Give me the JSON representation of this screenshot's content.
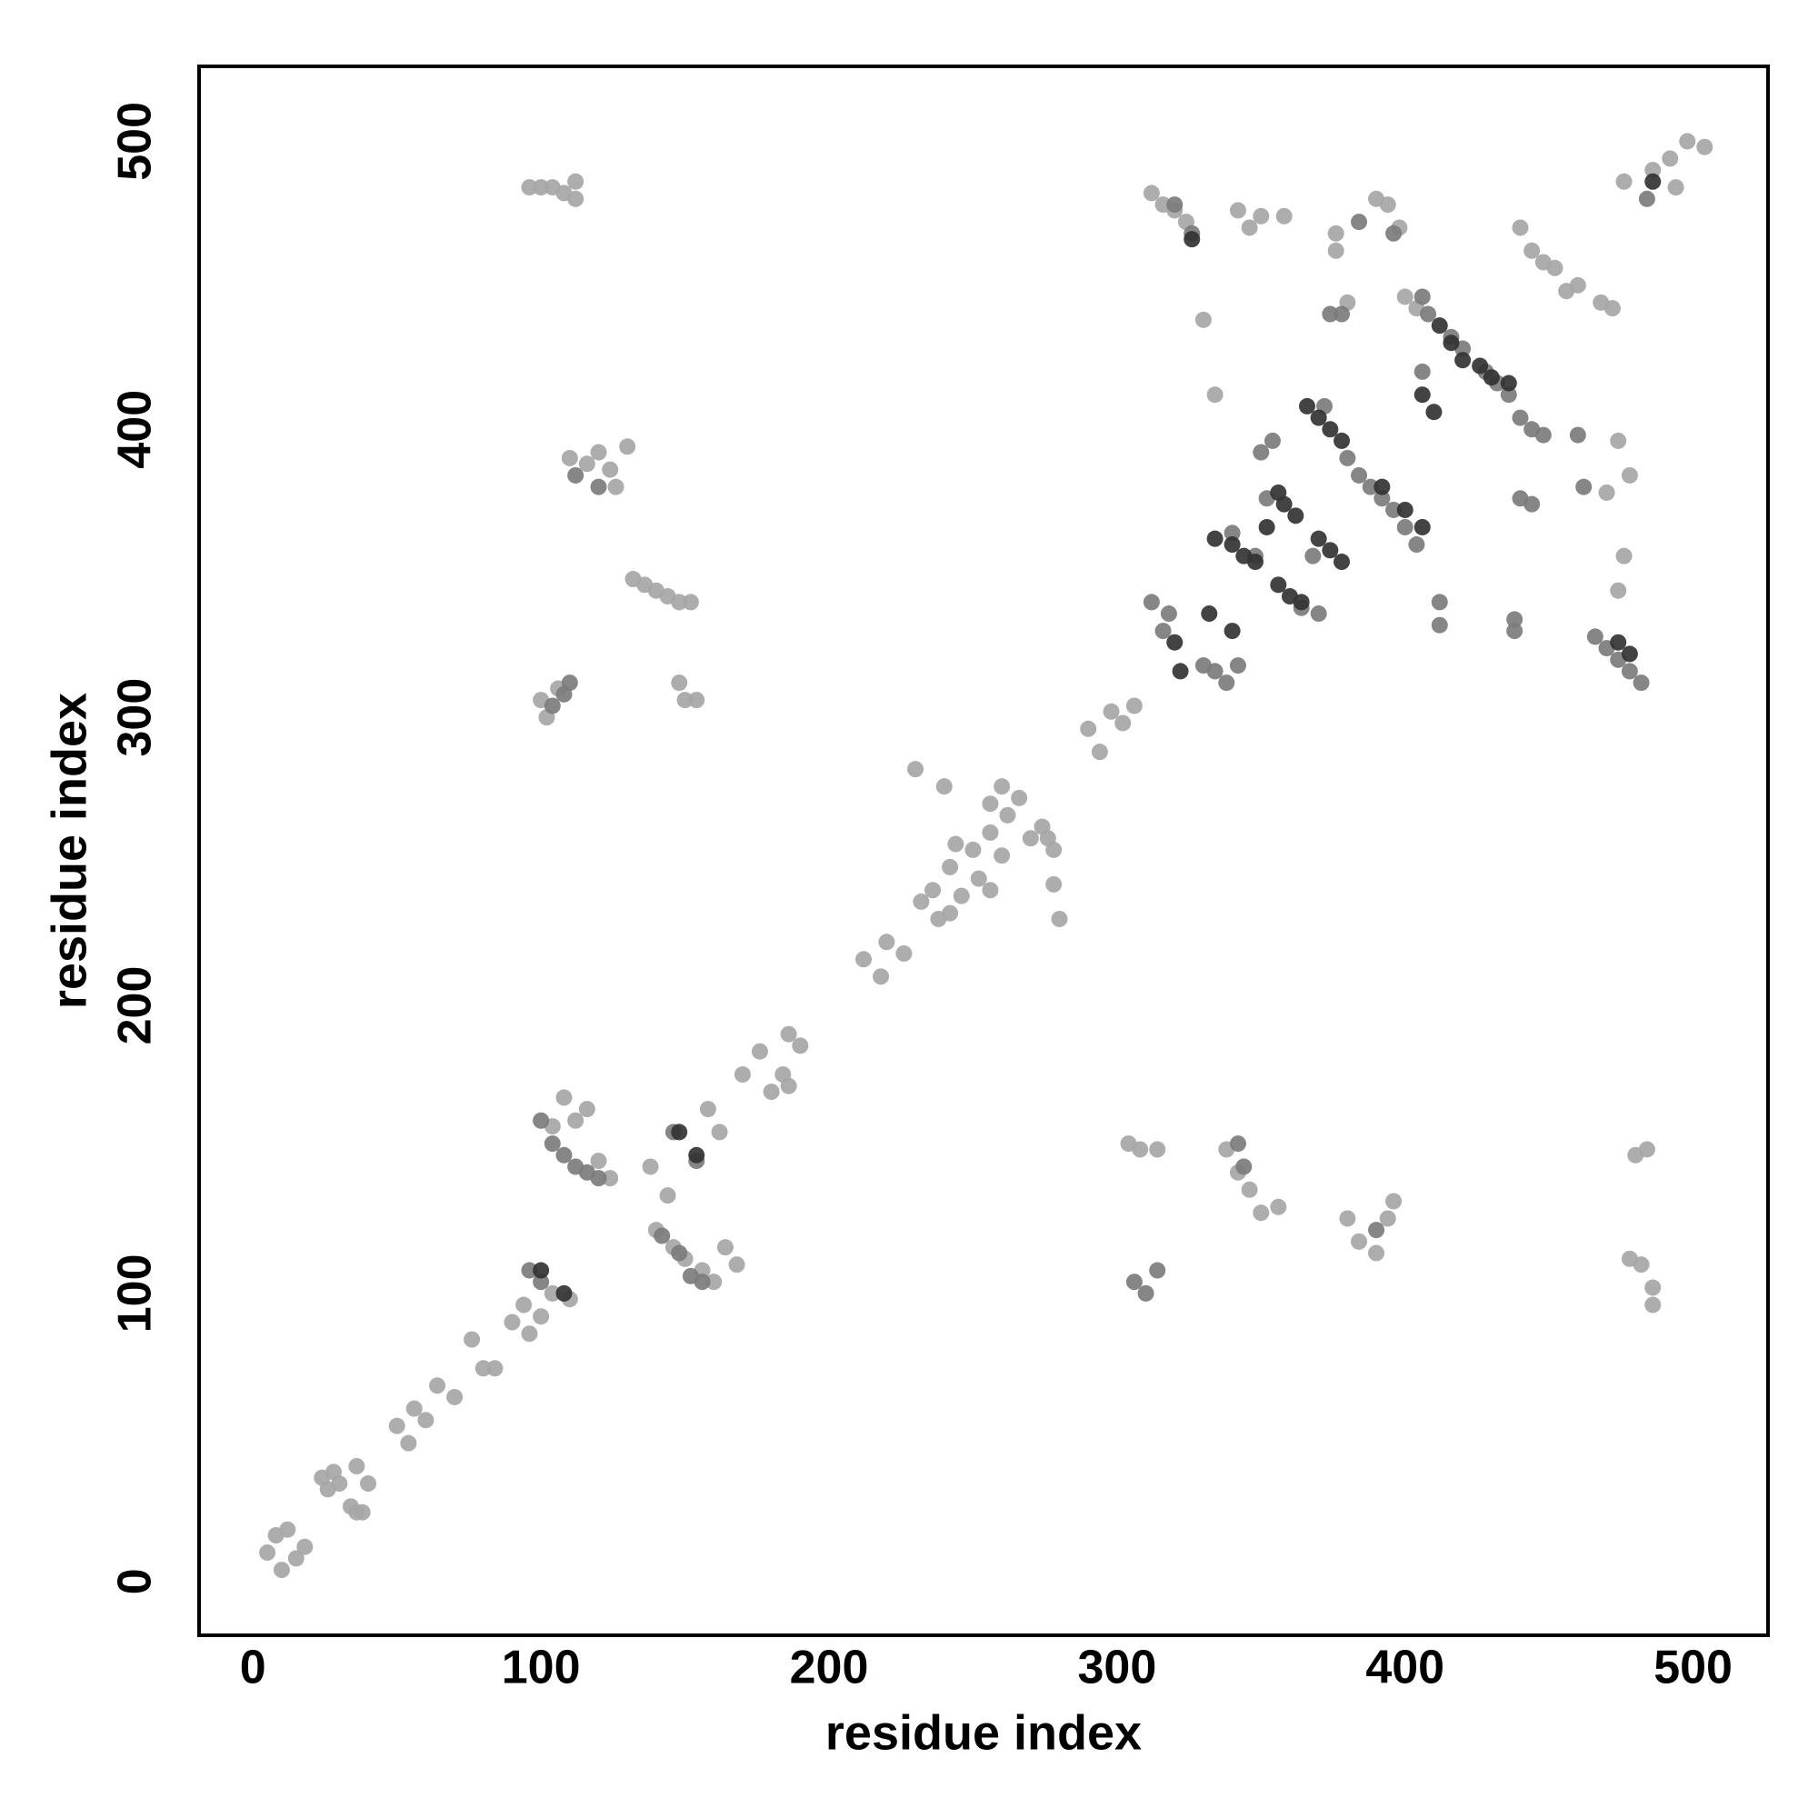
{
  "chart_data": {
    "type": "scatter",
    "xlabel": "residue index",
    "ylabel": "residue index",
    "xlim": [
      -18.7,
      526
    ],
    "ylim": [
      -18.7,
      526
    ],
    "xticks": [
      0,
      100,
      200,
      300,
      400,
      500
    ],
    "yticks": [
      0,
      100,
      200,
      300,
      400,
      500
    ],
    "grid": false,
    "series": [
      {
        "color": "#a6a6a6",
        "x": [
          5,
          8,
          10,
          12,
          15,
          18,
          24,
          26,
          28,
          30,
          34,
          36,
          38,
          40,
          36,
          50,
          54,
          56,
          60,
          64,
          70,
          76,
          80,
          84,
          90,
          94,
          96,
          100,
          170,
          176,
          180,
          184,
          186,
          190,
          186,
          212,
          218,
          220,
          226,
          232,
          236,
          238,
          242,
          242,
          244,
          246,
          250,
          252,
          256,
          256,
          260,
          256,
          260,
          262,
          266,
          270,
          274,
          276,
          278,
          280,
          278,
          230,
          240,
          290,
          294,
          298,
          302,
          306,
          96,
          100,
          104,
          108,
          112,
          112,
          110,
          116,
          120,
          124,
          126,
          130,
          132,
          136,
          140,
          144,
          148,
          152,
          100,
          102,
          106,
          148,
          150,
          154,
          312,
          316,
          320,
          324,
          330,
          334,
          342,
          346,
          350,
          358,
          376,
          376,
          380,
          390,
          394,
          398,
          400,
          404,
          440,
          444,
          448,
          452,
          456,
          460,
          468,
          472,
          476,
          492,
          498,
          504,
          494,
          486,
          474,
          476,
          474,
          470,
          478,
          304,
          308,
          314,
          338,
          342,
          346,
          350,
          356,
          380,
          384,
          390,
          394,
          396,
          480,
          484,
          482,
          486,
          486,
          478,
          104,
          108,
          112,
          116,
          120,
          124,
          140,
          146,
          150,
          156,
          160,
          164,
          168,
          162,
          158,
          144,
          138,
          104,
          110
        ],
        "y": [
          10,
          16,
          4,
          18,
          8,
          12,
          36,
          32,
          38,
          34,
          26,
          24,
          24,
          34,
          40,
          54,
          48,
          60,
          56,
          68,
          64,
          84,
          74,
          74,
          90,
          96,
          86,
          92,
          176,
          184,
          170,
          176,
          190,
          186,
          172,
          216,
          210,
          222,
          218,
          236,
          240,
          230,
          232,
          248,
          256,
          238,
          254,
          244,
          240,
          260,
          252,
          270,
          276,
          266,
          272,
          258,
          262,
          258,
          254,
          230,
          242,
          282,
          276,
          296,
          288,
          302,
          298,
          304,
          484,
          484,
          484,
          482,
          480,
          486,
          390,
          388,
          392,
          386,
          380,
          394,
          348,
          346,
          344,
          342,
          340,
          340,
          306,
          300,
          310,
          312,
          306,
          306,
          482,
          478,
          476,
          472,
          438,
          412,
          476,
          470,
          474,
          474,
          468,
          462,
          444,
          480,
          478,
          470,
          446,
          442,
          470,
          462,
          458,
          456,
          448,
          450,
          444,
          442,
          486,
          494,
          500,
          498,
          484,
          490,
          396,
          356,
          344,
          378,
          384,
          152,
          150,
          150,
          150,
          142,
          136,
          128,
          130,
          126,
          118,
          114,
          126,
          132,
          148,
          150,
          110,
          102,
          96,
          112,
          158,
          168,
          160,
          164,
          146,
          140,
          122,
          116,
          112,
          108,
          104,
          116,
          110,
          156,
          164,
          134,
          144,
          100,
          98
        ]
      },
      {
        "color": "#7c7c7c",
        "x": [
          100,
          104,
          108,
          112,
          116,
          120,
          142,
          148,
          152,
          156,
          146,
          154,
          96,
          100,
          104,
          108,
          110,
          112,
          120,
          312,
          316,
          318,
          330,
          334,
          338,
          342,
          340,
          348,
          352,
          350,
          354,
          364,
          370,
          368,
          380,
          384,
          388,
          392,
          396,
          400,
          404,
          406,
          408,
          416,
          420,
          428,
          432,
          436,
          440,
          444,
          448,
          440,
          444,
          412,
          412,
          438,
          438,
          460,
          462,
          466,
          470,
          474,
          478,
          482,
          326,
          320,
          384,
          396,
          484,
          310,
          314,
          306,
          390,
          342,
          344,
          374,
          378,
          372,
          406
        ],
        "y": [
          160,
          152,
          148,
          144,
          142,
          140,
          120,
          114,
          106,
          104,
          156,
          146,
          108,
          104,
          304,
          308,
          312,
          384,
          380,
          340,
          330,
          336,
          318,
          316,
          312,
          318,
          364,
          356,
          376,
          392,
          396,
          338,
          336,
          356,
          390,
          384,
          380,
          376,
          372,
          366,
          360,
          446,
          440,
          432,
          428,
          420,
          416,
          412,
          404,
          400,
          398,
          376,
          374,
          340,
          332,
          334,
          330,
          398,
          380,
          328,
          324,
          320,
          316,
          312,
          468,
          478,
          472,
          468,
          480,
          100,
          108,
          104,
          122,
          152,
          144,
          440,
          440,
          408,
          420
        ]
      },
      {
        "color": "#333333",
        "x": [
          100,
          108,
          148,
          154,
          320,
          322,
          332,
          340,
          334,
          340,
          344,
          348,
          352,
          356,
          358,
          362,
          356,
          360,
          364,
          366,
          370,
          374,
          378,
          370,
          374,
          378,
          392,
          400,
          406,
          412,
          416,
          420,
          426,
          430,
          436,
          406,
          410,
          326,
          474,
          478,
          486
        ],
        "y": [
          108,
          100,
          156,
          148,
          326,
          316,
          336,
          330,
          362,
          360,
          356,
          354,
          366,
          378,
          374,
          370,
          346,
          342,
          340,
          408,
          404,
          400,
          396,
          362,
          358,
          354,
          380,
          372,
          366,
          436,
          430,
          424,
          422,
          418,
          416,
          412,
          406,
          466,
          326,
          322,
          486
        ]
      }
    ]
  }
}
